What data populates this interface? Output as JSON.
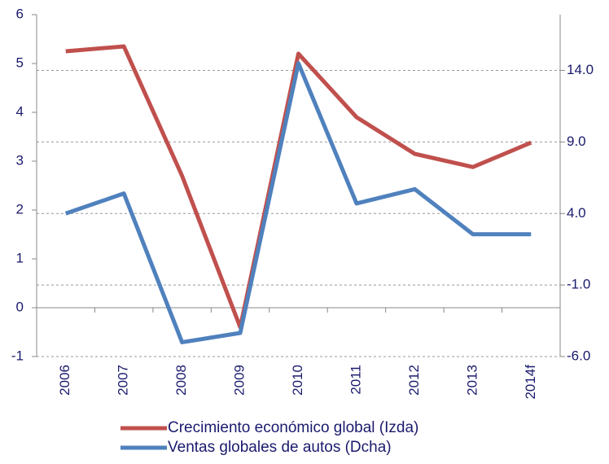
{
  "chart_data": {
    "type": "line",
    "categories": [
      "2006",
      "2007",
      "2008",
      "2009",
      "2010",
      "2011",
      "2012",
      "2013",
      "2014f"
    ],
    "series": [
      {
        "name": "Crecimiento económico global (Izda)",
        "color": "#c0504d",
        "axis": "y",
        "values": [
          5.25,
          5.35,
          2.7,
          -0.4,
          5.2,
          3.9,
          3.15,
          2.88,
          3.38
        ]
      },
      {
        "name": "Ventas globales de autos (Dcha)",
        "color": "#4f81bd",
        "axis": "y2",
        "values": [
          4.0,
          5.4,
          -5.0,
          -4.35,
          14.5,
          4.7,
          5.7,
          2.55,
          2.55
        ]
      }
    ],
    "ylim": [
      -1,
      6
    ],
    "yticks": [
      -1,
      0,
      1,
      2,
      3,
      4,
      5,
      6
    ],
    "y2lim": [
      -6,
      17.9
    ],
    "y2ticks": [
      {
        "value": -6,
        "label": "-6.0"
      },
      {
        "value": -1,
        "label": "-1.0"
      },
      {
        "value": 4,
        "label": "4.0"
      },
      {
        "value": 9,
        "label": "9.0"
      },
      {
        "value": 14,
        "label": "14.0"
      }
    ],
    "grid": true,
    "legend": "bottom"
  }
}
